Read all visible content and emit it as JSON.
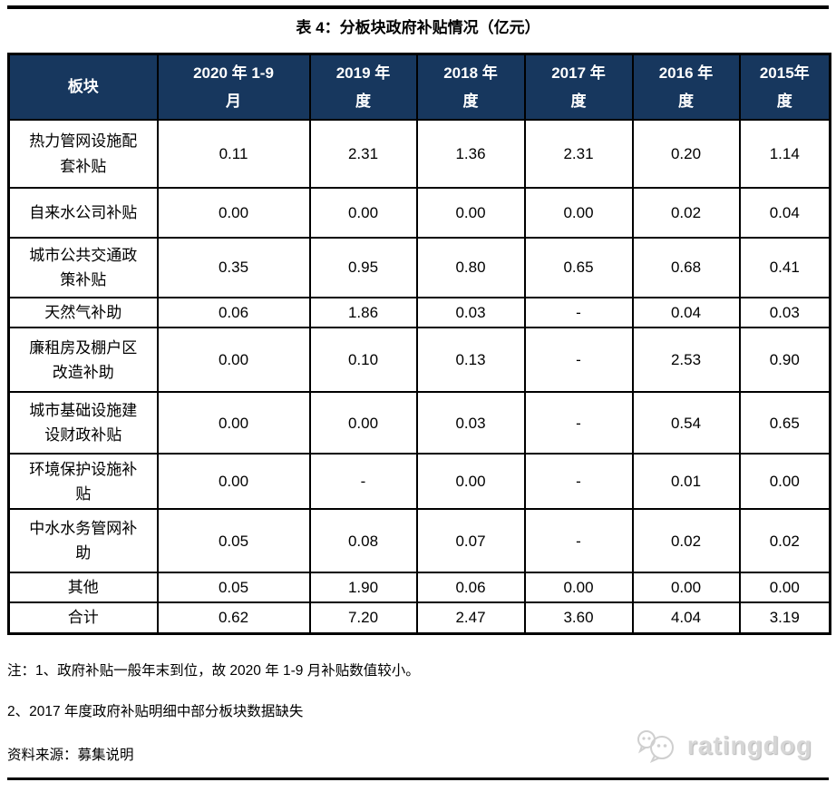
{
  "title": "表 4：分板块政府补贴情况（亿元）",
  "colors": {
    "header_bg": "#17375E",
    "header_text": "#FFFFFF",
    "border": "#000000",
    "logo_gray": "#CFCFCF"
  },
  "table": {
    "columns": [
      "板块",
      "2020 年 1-9\n月",
      "2019 年\n度",
      "2018 年\n度",
      "2017 年\n度",
      "2016 年\n度",
      "2015年\n度"
    ],
    "rows": [
      {
        "label": "热力管网设施配套补贴",
        "values": [
          "0.11",
          "2.31",
          "1.36",
          "2.31",
          "0.20",
          "1.14"
        ]
      },
      {
        "label": "自来水公司补贴",
        "values": [
          "0.00",
          "0.00",
          "0.00",
          "0.00",
          "0.02",
          "0.04"
        ]
      },
      {
        "label": "城市公共交通政策补贴",
        "values": [
          "0.35",
          "0.95",
          "0.80",
          "0.65",
          "0.68",
          "0.41"
        ]
      },
      {
        "label": "天然气补助",
        "values": [
          "0.06",
          "1.86",
          "0.03",
          "-",
          "0.04",
          "0.03"
        ]
      },
      {
        "label": "廉租房及棚户区改造补助",
        "values": [
          "0.00",
          "0.10",
          "0.13",
          "-",
          "2.53",
          "0.90"
        ]
      },
      {
        "label": "城市基础设施建设财政补贴",
        "values": [
          "0.00",
          "0.00",
          "0.03",
          "-",
          "0.54",
          "0.65"
        ]
      },
      {
        "label": "环境保护设施补贴",
        "values": [
          "0.00",
          "-",
          "0.00",
          "-",
          "0.01",
          "0.00"
        ]
      },
      {
        "label": "中水水务管网补助",
        "values": [
          "0.05",
          "0.08",
          "0.07",
          "-",
          "0.02",
          "0.02"
        ]
      },
      {
        "label": "其他",
        "values": [
          "0.05",
          "1.90",
          "0.06",
          "0.00",
          "0.00",
          "0.00"
        ]
      },
      {
        "label": "合计",
        "values": [
          "0.62",
          "7.20",
          "2.47",
          "3.60",
          "4.04",
          "3.19"
        ]
      }
    ]
  },
  "notes": [
    "注：1、政府补贴一般年末到位，故 2020 年 1-9 月补贴数值较小。",
    "2、2017 年度政府补贴明细中部分板块数据缺失"
  ],
  "source": "资料来源：募集说明",
  "logo": {
    "text": "ratingdog"
  }
}
